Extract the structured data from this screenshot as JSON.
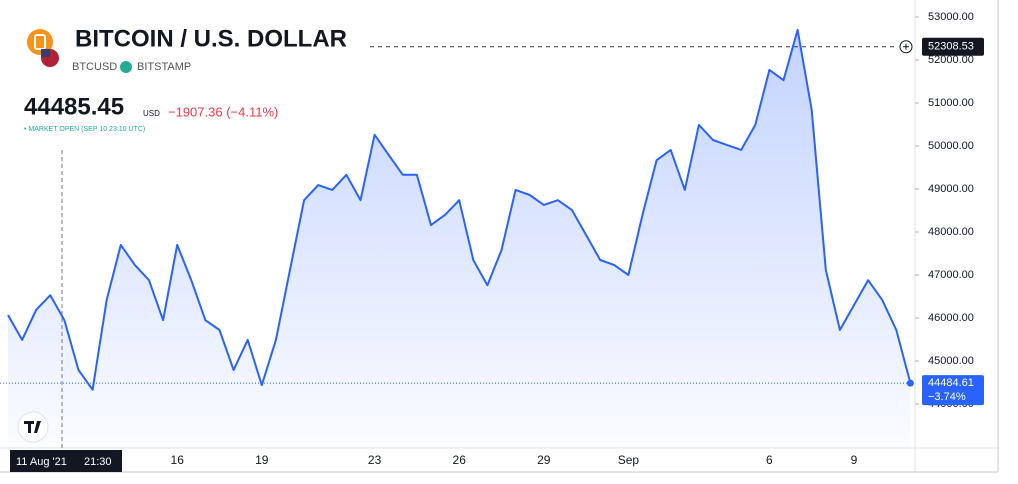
{
  "chart_data": {
    "type": "area",
    "title": "BITCOIN / U.S. DOLLAR",
    "symbol": "BTCUSD",
    "exchange": "BITSTAMP",
    "price": 44485.45,
    "currency": "USD",
    "change": "−1907.36 (−4.11%)",
    "status": "• MARKET OPEN (SEP 10 23:10 UTC)",
    "crosshair_price": 52308.53,
    "crosshair_date": "11 Aug '21",
    "crosshair_time": "21:30",
    "last_change": "−3.74%",
    "categories": [
      null,
      null,
      null,
      null,
      null,
      null,
      null,
      null,
      null,
      null,
      null,
      null,
      "16",
      null,
      null,
      null,
      null,
      null,
      "19",
      null,
      null,
      null,
      null,
      null,
      null,
      null,
      "23",
      null,
      null,
      null,
      null,
      null,
      "26",
      null,
      null,
      null,
      null,
      null,
      "29",
      null,
      null,
      null,
      null,
      null,
      "Sep",
      null,
      null,
      null,
      null,
      null,
      null,
      null,
      null,
      null,
      "6",
      null,
      null,
      null,
      null,
      null,
      "9",
      null,
      null,
      null,
      null
    ],
    "series": [
      {
        "name": "BTCUSD",
        "color": "#2962ff",
        "values": [
          46070,
          45490,
          46190,
          46530,
          45950,
          44790,
          44330,
          46420,
          47700,
          47230,
          46880,
          45950,
          47700,
          46880,
          45950,
          45720,
          44790,
          45490,
          44440,
          45490,
          47120,
          48740,
          49090,
          48980,
          49330,
          48740,
          50260,
          49790,
          49330,
          49330,
          48160,
          48400,
          48740,
          47350,
          46760,
          47580,
          48980,
          48860,
          48630,
          48740,
          48510,
          47930,
          47350,
          47230,
          47000,
          48400,
          49670,
          49910,
          48980,
          50490,
          50140,
          50020,
          49910,
          50490,
          51770,
          51530,
          52700,
          50840,
          47120,
          45720,
          46300,
          46880,
          46420,
          45720,
          44484.61
        ]
      }
    ],
    "ylim": [
      42977,
      53395
    ],
    "yticks": [
      {
        "value": 44000,
        "label": "44000.00"
      },
      {
        "value": 45000,
        "label": "45000.00"
      },
      {
        "value": 46000,
        "label": "46000.00"
      },
      {
        "value": 47000,
        "label": "47000.00"
      },
      {
        "value": 48000,
        "label": "48000.00"
      },
      {
        "value": 49000,
        "label": "49000.00"
      },
      {
        "value": 50000,
        "label": "50000.00"
      },
      {
        "value": 51000,
        "label": "51000.00"
      },
      {
        "value": 52000,
        "label": "52000.00"
      },
      {
        "value": 53000,
        "label": "53000.00"
      }
    ]
  }
}
